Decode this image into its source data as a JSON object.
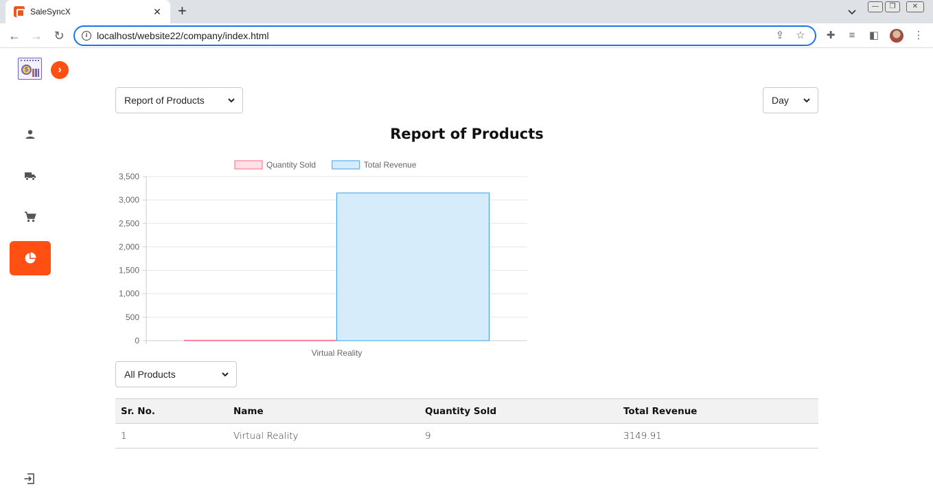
{
  "browser": {
    "tab_title": "SaleSyncX",
    "url": "localhost/website22/company/index.html"
  },
  "filters": {
    "report_select": "Report of Products",
    "period_select": "Day",
    "product_select": "All Products"
  },
  "report": {
    "title": "Report of Products"
  },
  "chart_data": {
    "type": "bar",
    "categories": [
      "Virtual Reality"
    ],
    "series": [
      {
        "name": "Quantity Sold",
        "values": [
          9
        ],
        "color": "#ff6384",
        "fill": "#ffe0e6"
      },
      {
        "name": "Total Revenue",
        "values": [
          3149.91
        ],
        "color": "#36a2eb",
        "fill": "#d7ecfb"
      }
    ],
    "ylim": [
      0,
      3500
    ],
    "yticks": [
      "0",
      "500",
      "1,000",
      "1,500",
      "2,000",
      "2,500",
      "3,000",
      "3,500"
    ],
    "yticks_values": [
      0,
      500,
      1000,
      1500,
      2000,
      2500,
      3000,
      3500
    ],
    "legend": "top-center",
    "grid": true
  },
  "table": {
    "headers": [
      "Sr. No.",
      "Name",
      "Quantity Sold",
      "Total Revenue"
    ],
    "rows": [
      [
        "1",
        "Virtual Reality",
        "9",
        "3149.91"
      ]
    ]
  },
  "colors": {
    "accent": "#ff4f12"
  }
}
